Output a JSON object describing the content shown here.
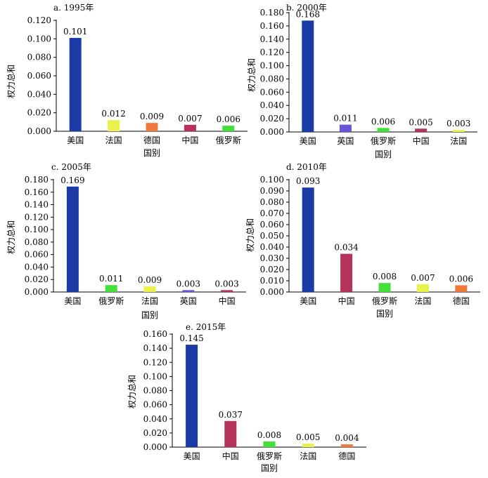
{
  "colors": {
    "美国": "#1a3aa6",
    "法国": "#e8f24a",
    "德国": "#f07a3c",
    "中国": "#b53358",
    "俄罗斯": "#44e03a",
    "英国": "#6a55d6"
  },
  "chart_data": [
    {
      "type": "bar",
      "title": "a. 1995年",
      "xlabel": "国别",
      "ylabel": "权力总和",
      "categories": [
        "美国",
        "法国",
        "德国",
        "中国",
        "俄罗斯"
      ],
      "values": [
        0.101,
        0.012,
        0.009,
        0.007,
        0.006
      ],
      "value_labels": [
        "0.101",
        "0.012",
        "0.009",
        "0.007",
        "0.006"
      ],
      "ylim": [
        0,
        0.12
      ],
      "yticks": [
        "0.000",
        "0.020",
        "0.040",
        "0.060",
        "0.080",
        "0.100",
        "0.120"
      ],
      "grid": false
    },
    {
      "type": "bar",
      "title": "b. 2000年",
      "xlabel": "国别",
      "ylabel": "权力总和",
      "categories": [
        "美国",
        "英国",
        "俄罗斯",
        "中国",
        "法国"
      ],
      "values": [
        0.168,
        0.011,
        0.006,
        0.005,
        0.003
      ],
      "value_labels": [
        "0.168",
        "0.011",
        "0.006",
        "0.005",
        "0.003"
      ],
      "ylim": [
        0,
        0.18
      ],
      "yticks": [
        "0.000",
        "0.020",
        "0.040",
        "0.060",
        "0.080",
        "0.100",
        "0.120",
        "0.140",
        "0.160",
        "0.180"
      ],
      "grid": false
    },
    {
      "type": "bar",
      "title": "c. 2005年",
      "xlabel": "国别",
      "ylabel": "权力总和",
      "categories": [
        "美国",
        "俄罗斯",
        "法国",
        "英国",
        "中国"
      ],
      "values": [
        0.169,
        0.011,
        0.009,
        0.003,
        0.003
      ],
      "value_labels": [
        "0.169",
        "0.011",
        "0.009",
        "0.003",
        "0.003"
      ],
      "ylim": [
        0,
        0.18
      ],
      "yticks": [
        "0.000",
        "0.020",
        "0.040",
        "0.060",
        "0.080",
        "0.100",
        "0.120",
        "0.140",
        "0.160",
        "0.180"
      ],
      "grid": false
    },
    {
      "type": "bar",
      "title": "d. 2010年",
      "xlabel": "国别",
      "ylabel": "权力总和",
      "categories": [
        "美国",
        "中国",
        "俄罗斯",
        "法国",
        "德国"
      ],
      "values": [
        0.093,
        0.034,
        0.008,
        0.007,
        0.006
      ],
      "value_labels": [
        "0.093",
        "0.034",
        "0.008",
        "0.007",
        "0.006"
      ],
      "ylim": [
        0,
        0.1
      ],
      "yticks": [
        "0.000",
        "0.010",
        "0.020",
        "0.030",
        "0.040",
        "0.050",
        "0.060",
        "0.070",
        "0.080",
        "0.090",
        "0.100"
      ],
      "grid": false
    },
    {
      "type": "bar",
      "title": "e. 2015年",
      "xlabel": "国别",
      "ylabel": "权力总和",
      "categories": [
        "美国",
        "中国",
        "俄罗斯",
        "法国",
        "德国"
      ],
      "values": [
        0.145,
        0.037,
        0.008,
        0.005,
        0.004
      ],
      "value_labels": [
        "0.145",
        "0.037",
        "0.008",
        "0.005",
        "0.004"
      ],
      "ylim": [
        0,
        0.16
      ],
      "yticks": [
        "0.000",
        "0.020",
        "0.040",
        "0.060",
        "0.080",
        "0.100",
        "0.120",
        "0.140",
        "0.160"
      ],
      "grid": false
    }
  ]
}
